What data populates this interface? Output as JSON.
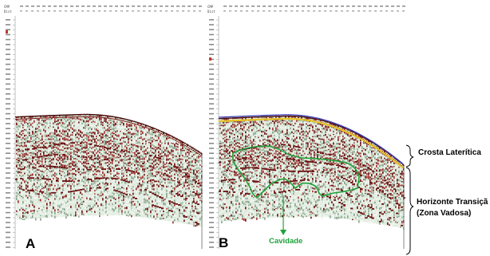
{
  "panels": [
    {
      "letter": "A",
      "header_row1": "CMP",
      "header_row2": "Dist"
    },
    {
      "letter": "B",
      "header_row1": "CMP",
      "header_row2": "Dist"
    }
  ],
  "annotations": {
    "crosta": "Crosta Laterítica",
    "horizonte_line1": "Horizonte Transiçã",
    "horizonte_line2": "(Zona Vadosa)",
    "cavidade": "Cavidade"
  },
  "colors": {
    "cavity_outline": "#1fa23a",
    "surface_line": "#3b3fb8",
    "laterite_band": "#e8c52a",
    "signal_dark": "#7a1515",
    "signal_light": "#d6e6d8"
  }
}
